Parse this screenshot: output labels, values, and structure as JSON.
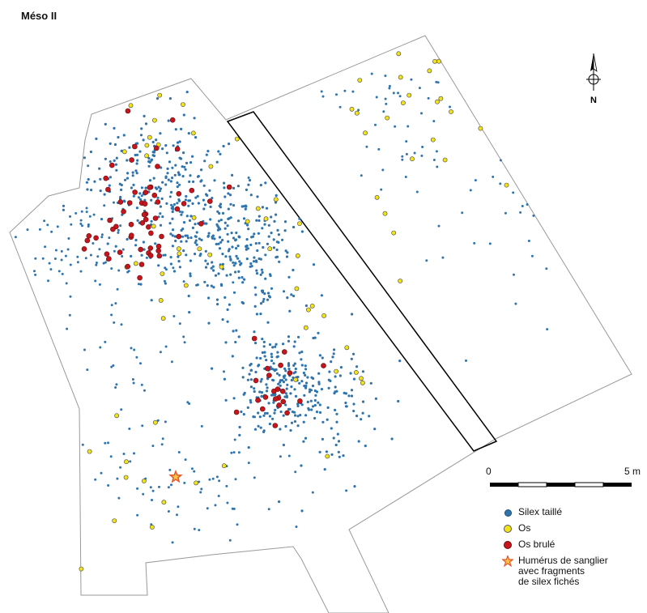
{
  "title": "Méso II",
  "north_label": "N",
  "scale": {
    "start_label": "0",
    "end_label": "5 m"
  },
  "colors": {
    "silex": "#2f74ad",
    "os": "#f2e21a",
    "os_brule": "#c4161c",
    "outline": "#999999",
    "trench": "#000000",
    "star": "#f28a1e"
  },
  "legend": {
    "silex": "Silex taillé",
    "os": "Os",
    "os_brule": "Os brulé",
    "star_line1": "Humérus de sanglier",
    "star_line2": "avec fragments",
    "star_line3": "de silex fichés"
  }
}
